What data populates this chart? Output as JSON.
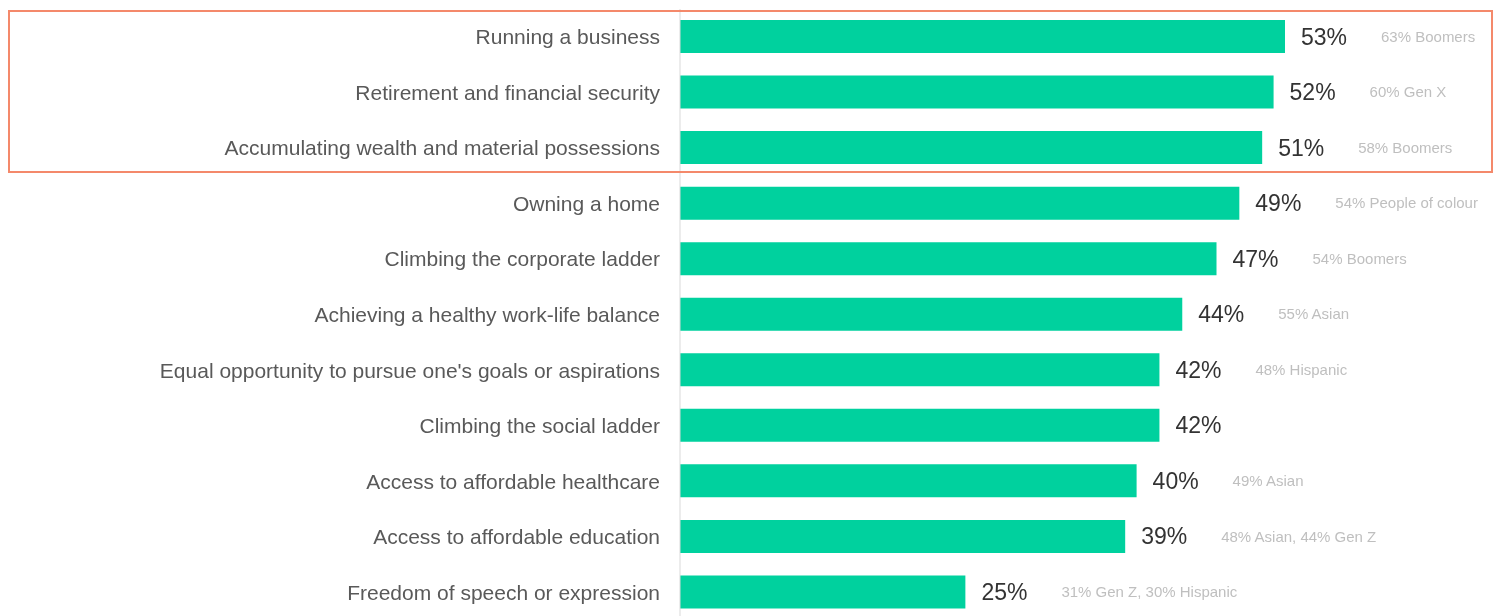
{
  "chart_data": {
    "type": "bar",
    "orientation": "horizontal",
    "categories": [
      "Running a business",
      "Retirement and financial security",
      "Accumulating wealth and material possessions",
      "Owning a home",
      "Climbing the corporate ladder",
      "Achieving a healthy work-life balance",
      "Equal opportunity to pursue one's goals or aspirations",
      "Climbing the social ladder",
      "Access to affordable healthcare",
      "Access to affordable education",
      "Freedom of speech or expression"
    ],
    "values": [
      53,
      52,
      51,
      49,
      47,
      44,
      42,
      42,
      40,
      39,
      25
    ],
    "value_labels": [
      "53%",
      "52%",
      "51%",
      "49%",
      "47%",
      "44%",
      "42%",
      "42%",
      "40%",
      "39%",
      "25%"
    ],
    "color": "#00d19e",
    "tick_labels": "y",
    "grid": false,
    "legend": false,
    "annotations": [
      "63% Boomers",
      "60% Gen X",
      "58% Boomers",
      "54% People of colour",
      "54% Boomers",
      "55% Asian",
      "48% Hispanic",
      "49% Asian",
      "48% Asian, 44% Gen Z",
      "31% Gen Z, 30% Hispanic"
    ]
  }
}
